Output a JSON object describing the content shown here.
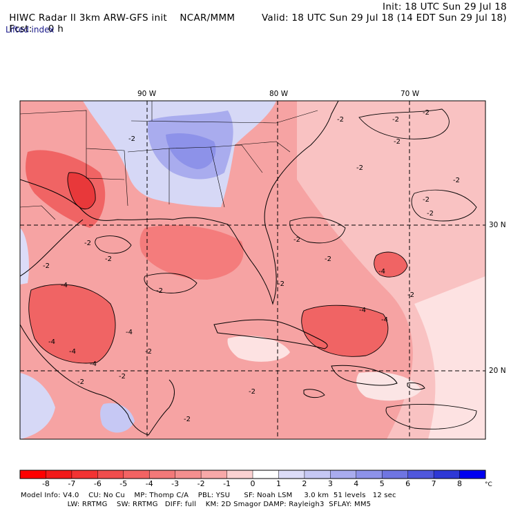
{
  "header": {
    "model_title": "HIWC Radar II 3km ARW-GFS init",
    "org": "NCAR/MMM",
    "init_label": "Init: 18 UTC Sun 29 Jul 18",
    "fcst_label": "Fcst:",
    "fcst_value": "0 h",
    "valid_label": "Valid: 18 UTC Sun 29 Jul 18 (14 EDT Sun 29 Jul 18)",
    "field_name": "Lifted index"
  },
  "map": {
    "lon_labels": [
      "90 W",
      "80 W",
      "70 W"
    ],
    "lat_labels": [
      "30 N",
      "20 N"
    ],
    "contour_labels": [
      "-2",
      "-2",
      "-2",
      "-2",
      "-2",
      "-2",
      "-2",
      "-2",
      "-2",
      "-2",
      "-2",
      "-2",
      "-2",
      "-2",
      "-4",
      "-4",
      "-4",
      "-4",
      "-4",
      "-4",
      "-4",
      "-4",
      "-2",
      "-2",
      "-2",
      "-2",
      "-2",
      "-2",
      "-2",
      "-2"
    ],
    "colors": {
      "strong_unstable": "#e8383a",
      "unstable": "#f47c7c",
      "mild": "#fbc4c4",
      "neutral": "#ffffff",
      "stable": "#c4c8f4",
      "coast": "#000000"
    }
  },
  "colorbar": {
    "ticks": [
      "-8",
      "-7",
      "-6",
      "-5",
      "-4",
      "-3",
      "-2",
      "-1",
      "0",
      "1",
      "2",
      "3",
      "4",
      "5",
      "6",
      "7",
      "8"
    ],
    "unit": "°C",
    "colors": [
      "#ff0000",
      "#f31a1a",
      "#f23333",
      "#f04d4d",
      "#f26363",
      "#f37979",
      "#f48f8f",
      "#f7a8a8",
      "#fbd1d1",
      "#ffffff",
      "#dcdcf8",
      "#c6c8f4",
      "#a9acee",
      "#8d92e9",
      "#6f75e2",
      "#4f57dc",
      "#2e38d6",
      "#0000f0"
    ]
  },
  "footer": {
    "line1": "Model Info: V4.0    CU: No Cu    MP: Thomp C/A    PBL: YSU      SF: Noah LSM     3.0 km  51 levels   12 sec",
    "line2": "                    LW: RRTMG    SW: RRTMG   DIFF: full    KM: 2D Smagor DAMP: Rayleigh3  SFLAY: MM5"
  }
}
